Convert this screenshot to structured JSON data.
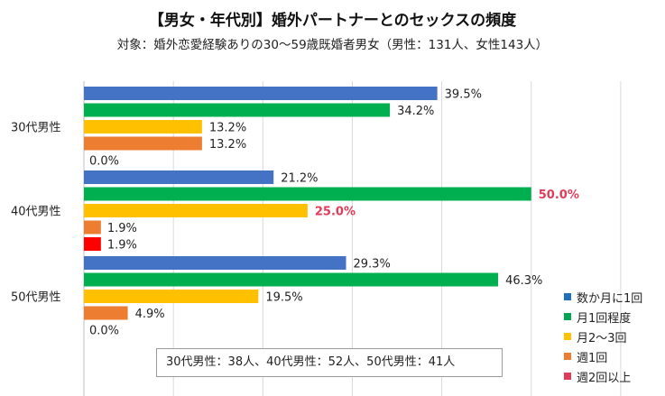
{
  "chart_data": {
    "type": "bar",
    "orientation": "horizontal",
    "title": "【男女・年代別】婚外パートナーとのセックスの頻度",
    "subtitle": "対象：婚外恋愛経験ありの30～59歳既婚者男女（男性：131人、女性143人）",
    "categories": [
      "30代男性",
      "40代男性",
      "50代男性"
    ],
    "series": [
      {
        "name": "数か月に1回",
        "color": "#4472c4",
        "values": [
          39.5,
          21.2,
          29.3
        ]
      },
      {
        "name": "月1回程度",
        "color": "#00b050",
        "values": [
          34.2,
          50.0,
          46.3
        ]
      },
      {
        "name": "月2～3回",
        "color": "#ffc000",
        "values": [
          13.2,
          25.0,
          19.5
        ]
      },
      {
        "name": "週1回",
        "color": "#ed7d31",
        "values": [
          13.2,
          1.9,
          4.9
        ]
      },
      {
        "name": "週2回以上",
        "color": "#ff0000",
        "values": [
          0.0,
          1.9,
          0.0
        ]
      }
    ],
    "data_labels": [
      [
        "39.5%",
        "34.2%",
        "13.2%",
        "13.2%",
        "0.0%"
      ],
      [
        "21.2%",
        "50.0%",
        "25.0%",
        "1.9%",
        "1.9%"
      ],
      [
        "29.3%",
        "46.3%",
        "19.5%",
        "4.9%",
        "0.0%"
      ]
    ],
    "highlight_labels": [
      [
        1,
        1
      ],
      [
        1,
        2
      ]
    ],
    "highlight_color": "#e03c5a",
    "xlim": [
      0,
      60
    ],
    "gridlines": true
  },
  "legend": {
    "items": [
      {
        "label": "数か月に1回",
        "color": "#1f6fbf"
      },
      {
        "label": "月1回程度",
        "color": "#00a651"
      },
      {
        "label": "月2～3回",
        "color": "#ffc000"
      },
      {
        "label": "週1回",
        "color": "#ed7d31"
      },
      {
        "label": "週2回以上",
        "color": "#e03c5a"
      }
    ]
  },
  "note": "30代男性：38人、40代男性：52人、50代男性：41人"
}
